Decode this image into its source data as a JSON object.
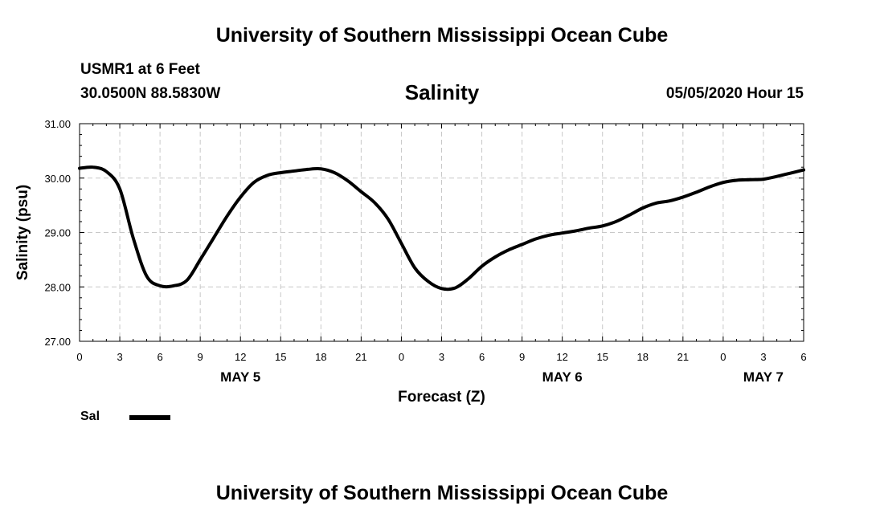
{
  "header": {
    "title": "University of Southern Mississippi Ocean Cube",
    "station": "USMR1 at 6 Feet",
    "coords": "30.0500N 88.5830W",
    "parameter": "Salinity",
    "datetime": "05/05/2020 Hour 15"
  },
  "footer": {
    "title": "University of Southern Mississippi Ocean Cube"
  },
  "legend": {
    "label": "Sal",
    "color": "#000000"
  },
  "chart_data": {
    "type": "line",
    "xlabel": "Forecast (Z)",
    "ylabel": "Salinity (psu)",
    "ylim": [
      27.0,
      31.0
    ],
    "xlim": [
      0,
      54
    ],
    "grid": true,
    "x_unit": "hours since May 5 00Z",
    "x_ticks": [
      0,
      3,
      6,
      9,
      12,
      15,
      18,
      21,
      24,
      27,
      30,
      33,
      36,
      39,
      42,
      45,
      48,
      51,
      54
    ],
    "x_tick_labels": [
      "0",
      "3",
      "6",
      "9",
      "12",
      "15",
      "18",
      "21",
      "0",
      "3",
      "6",
      "9",
      "12",
      "15",
      "18",
      "21",
      "0",
      "3",
      "6"
    ],
    "y_ticks": [
      27.0,
      28.0,
      29.0,
      30.0,
      31.0
    ],
    "y_tick_labels": [
      "27.00",
      "28.00",
      "29.00",
      "30.00",
      "31.00"
    ],
    "day_labels": [
      {
        "x": 12,
        "label": "MAY 5"
      },
      {
        "x": 36,
        "label": "MAY 6"
      },
      {
        "x": 51,
        "label": "MAY 7"
      }
    ],
    "series": [
      {
        "name": "Sal",
        "color": "#000000",
        "x": [
          0,
          1,
          2,
          3,
          4,
          5,
          6,
          7,
          8,
          9,
          10,
          11,
          12,
          13,
          14,
          15,
          16,
          17,
          18,
          19,
          20,
          21,
          22,
          23,
          24,
          25,
          26,
          27,
          28,
          29,
          30,
          31,
          32,
          33,
          34,
          35,
          36,
          37,
          38,
          39,
          40,
          41,
          42,
          43,
          44,
          45,
          46,
          47,
          48,
          49,
          50,
          51,
          52,
          53,
          54
        ],
        "values": [
          30.18,
          30.2,
          30.12,
          29.8,
          28.9,
          28.2,
          28.02,
          28.02,
          28.12,
          28.5,
          28.9,
          29.3,
          29.65,
          29.92,
          30.05,
          30.1,
          30.13,
          30.16,
          30.17,
          30.1,
          29.95,
          29.75,
          29.55,
          29.25,
          28.8,
          28.35,
          28.1,
          27.97,
          27.98,
          28.15,
          28.38,
          28.55,
          28.68,
          28.78,
          28.88,
          28.95,
          28.99,
          29.03,
          29.08,
          29.12,
          29.2,
          29.32,
          29.45,
          29.54,
          29.58,
          29.65,
          29.74,
          29.84,
          29.92,
          29.96,
          29.97,
          29.98,
          30.03,
          30.09,
          30.15
        ]
      }
    ]
  }
}
